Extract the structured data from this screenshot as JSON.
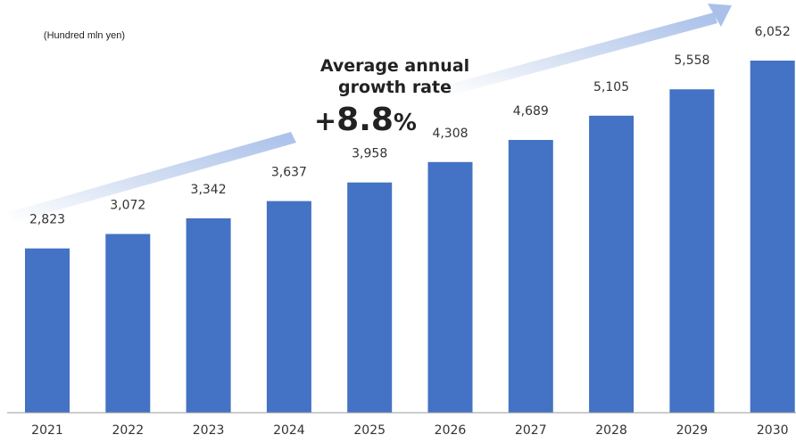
{
  "chart_data": {
    "type": "bar",
    "unit": "(Hundred mln yen)",
    "categories": [
      "2021",
      "2022",
      "2023",
      "2024",
      "2025",
      "2026",
      "2027",
      "2028",
      "2029",
      "2030"
    ],
    "values": [
      2823,
      3072,
      3342,
      3637,
      3958,
      4308,
      4689,
      5105,
      5558,
      6052
    ],
    "value_labels": [
      "2,823",
      "3,072",
      "3,342",
      "3,637",
      "3,958",
      "4,308",
      "4,689",
      "5,105",
      "5,558",
      "6,052"
    ],
    "ylim": [
      0,
      6500
    ],
    "bar_color": "#4472C4",
    "arrow_color": "#B4C7E7",
    "grid": false,
    "annotation": {
      "title": "Average annual growth rate",
      "title_line1": "Average annual",
      "title_line2": "growth rate",
      "rate_sign": "+",
      "rate_value": "8.8",
      "rate_unit": "%"
    }
  }
}
